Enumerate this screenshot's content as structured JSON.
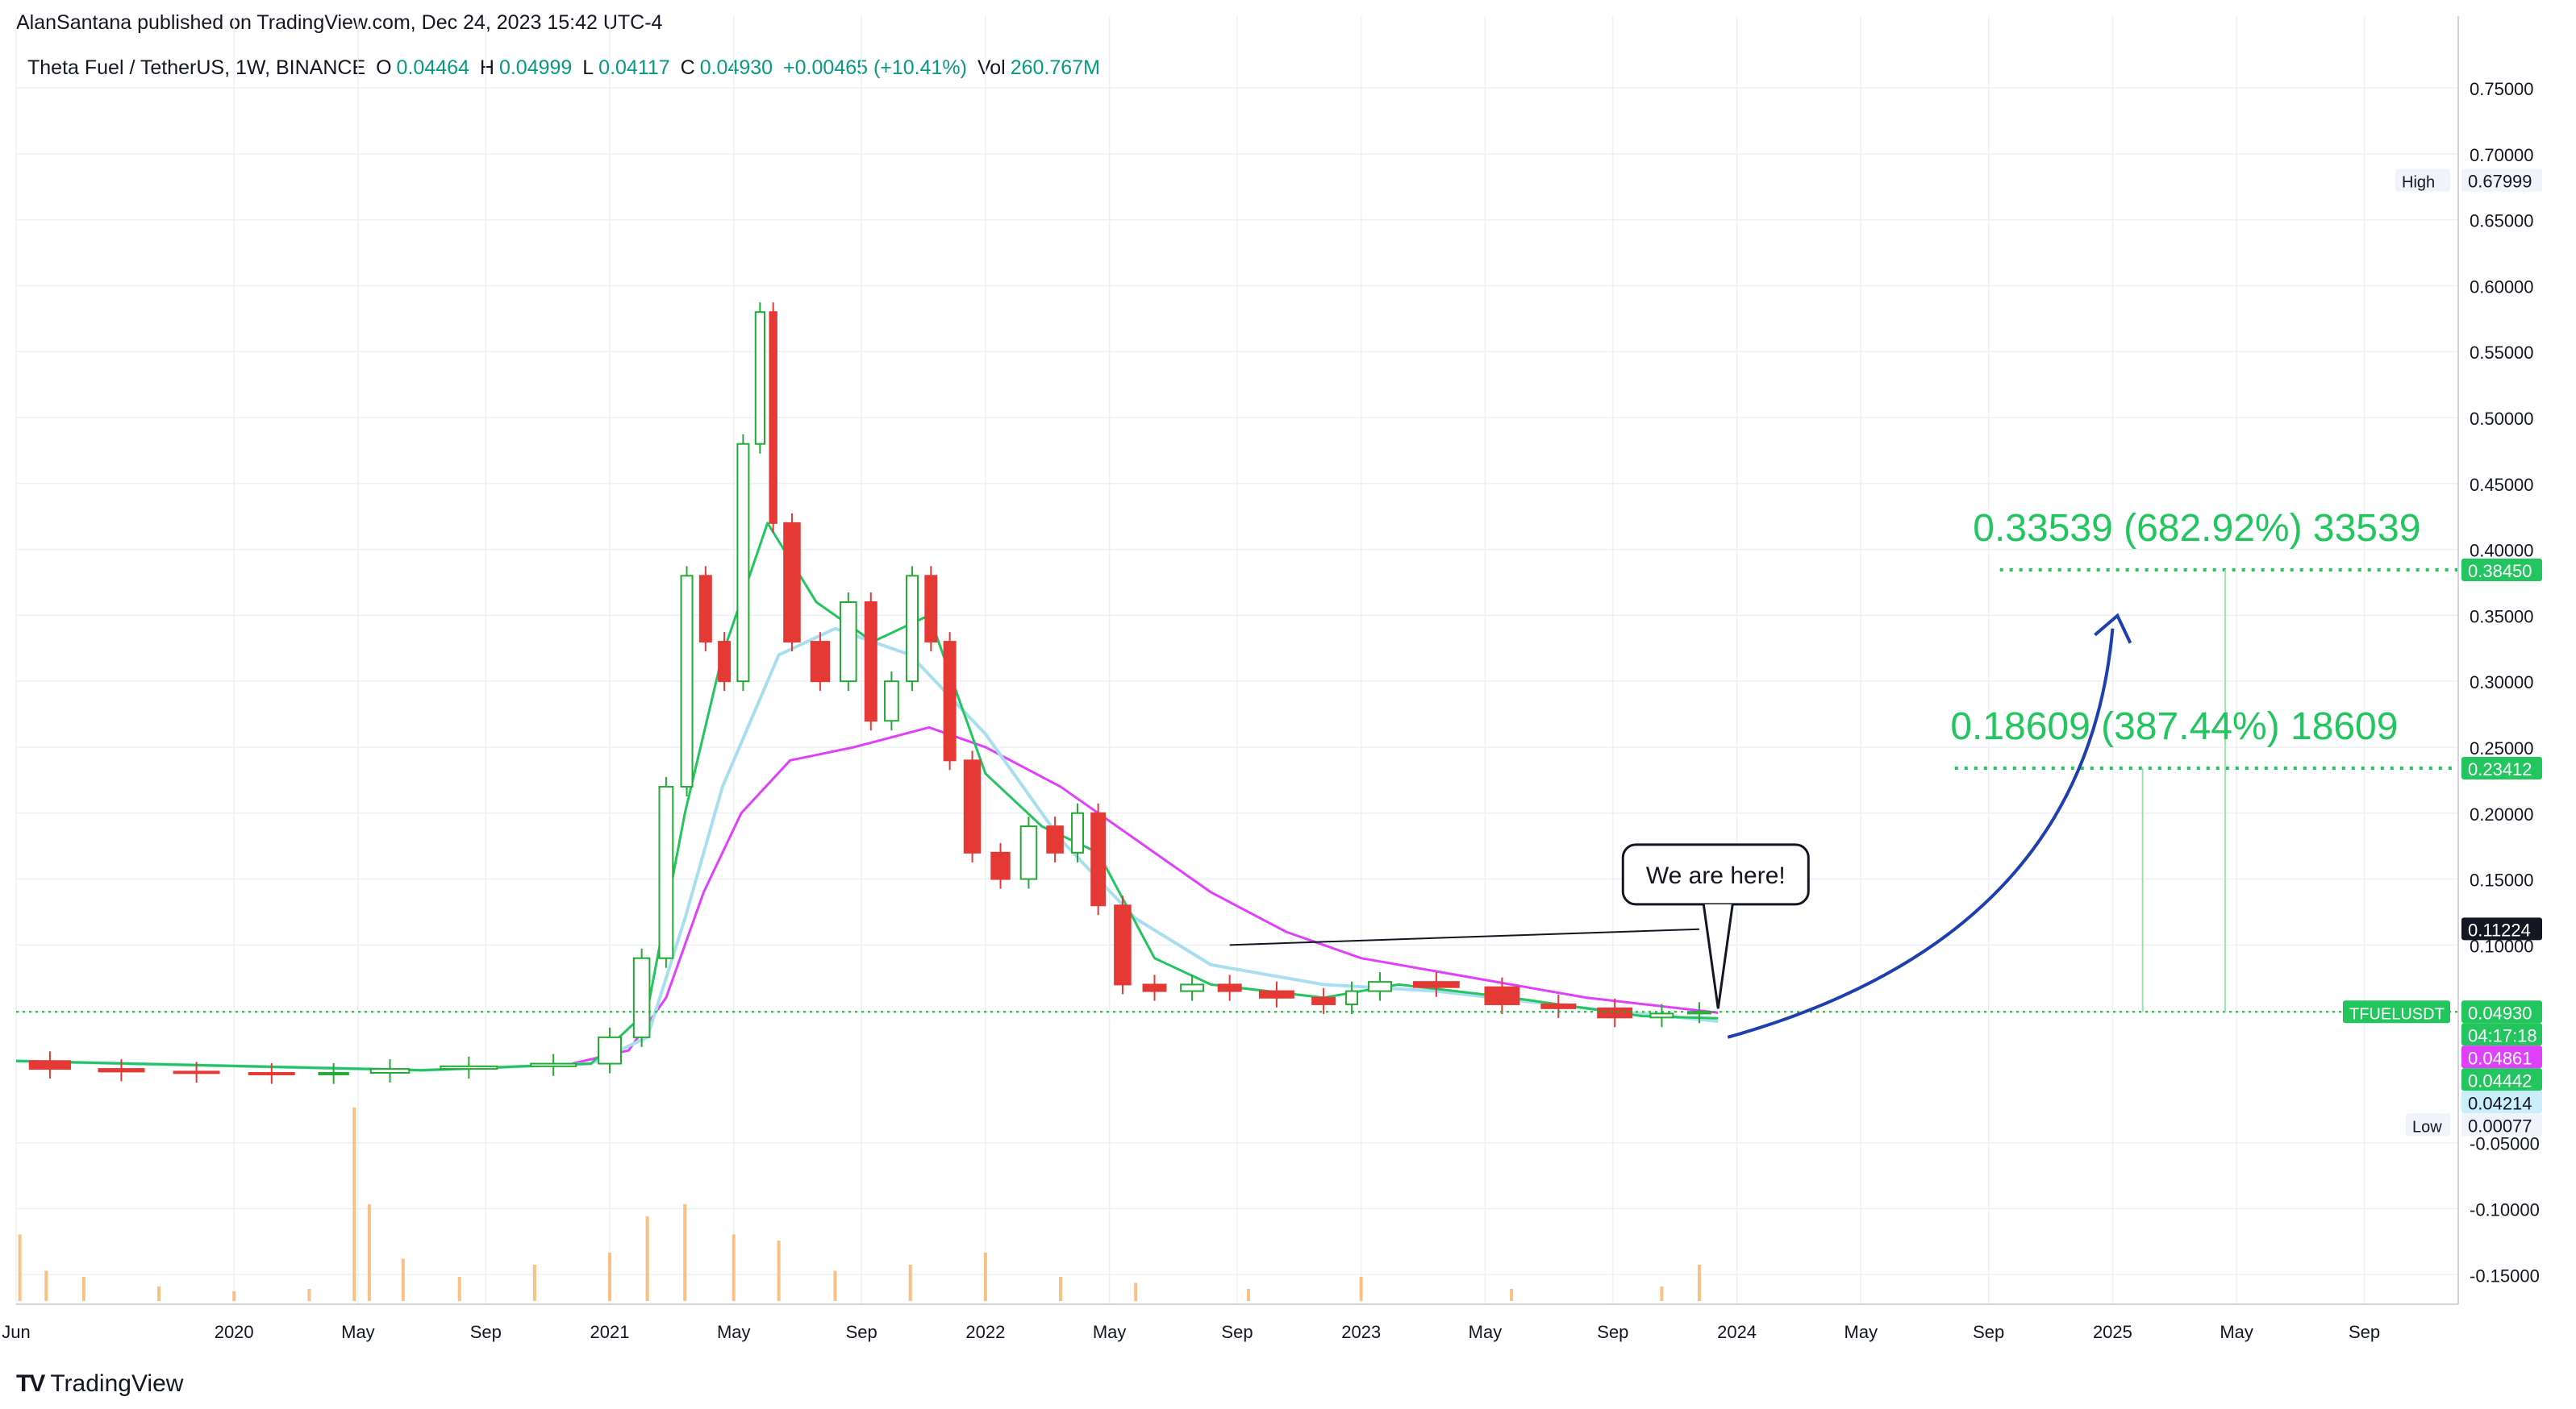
{
  "publish_line": "AlanSantana published on TradingView.com, Dec 24, 2023 15:42 UTC-4",
  "legend": {
    "symbol": "Theta Fuel / TetherUS, 1W, BINANCE",
    "o_label": "O",
    "o": "0.04464",
    "h_label": "H",
    "h": "0.04999",
    "l_label": "L",
    "l": "0.04117",
    "c_label": "C",
    "c": "0.04930",
    "change": "+0.00465 (+10.41%)",
    "vol_label": "Vol",
    "vol": "260.767M"
  },
  "footer": {
    "logo_mark": "TV",
    "logo_text": "TradingView"
  },
  "colors": {
    "up": "#22ab35",
    "down": "#e53935",
    "ema_fast": "#22c55e",
    "ema_mid": "#a8dff0",
    "ema_slow": "#e040fb",
    "target": "#22c55e",
    "arrow": "#1e40af",
    "grid": "#eef0f3"
  },
  "chart_data": {
    "type": "line",
    "title": "Theta Fuel / TetherUS, 1W, BINANCE",
    "xlabel": "",
    "ylabel": "",
    "ylim": [
      -0.17,
      0.78
    ],
    "y_ticks": [
      "0.75000",
      "0.70000",
      "0.65000",
      "0.60000",
      "0.55000",
      "0.50000",
      "0.45000",
      "0.40000",
      "0.35000",
      "0.30000",
      "0.25000",
      "0.20000",
      "0.15000",
      "0.10000",
      "-0.05000",
      "-0.10000",
      "-0.15000"
    ],
    "y_tick_values": [
      0.75,
      0.7,
      0.65,
      0.6,
      0.55,
      0.5,
      0.45,
      0.4,
      0.35,
      0.3,
      0.25,
      0.2,
      0.15,
      0.1,
      -0.05,
      -0.1,
      -0.15
    ],
    "x_ticks": [
      {
        "label": "Jun",
        "t": 2019.42
      },
      {
        "label": "2020",
        "t": 2020.0
      },
      {
        "label": "May",
        "t": 2020.33
      },
      {
        "label": "Sep",
        "t": 2020.67
      },
      {
        "label": "2021",
        "t": 2021.0
      },
      {
        "label": "May",
        "t": 2021.33
      },
      {
        "label": "Sep",
        "t": 2021.67
      },
      {
        "label": "2022",
        "t": 2022.0
      },
      {
        "label": "May",
        "t": 2022.33
      },
      {
        "label": "Sep",
        "t": 2022.67
      },
      {
        "label": "2023",
        "t": 2023.0
      },
      {
        "label": "May",
        "t": 2023.33
      },
      {
        "label": "Sep",
        "t": 2023.67
      },
      {
        "label": "2024",
        "t": 2024.0
      },
      {
        "label": "May",
        "t": 2024.33
      },
      {
        "label": "Sep",
        "t": 2024.67
      },
      {
        "label": "2025",
        "t": 2025.0
      },
      {
        "label": "May",
        "t": 2025.33
      },
      {
        "label": "Sep",
        "t": 2025.67
      }
    ],
    "x_range": [
      2019.42,
      2025.92
    ],
    "price_series": [
      {
        "t": 2019.42,
        "v": 0.012
      },
      {
        "t": 2019.6,
        "v": 0.006
      },
      {
        "t": 2019.8,
        "v": 0.004
      },
      {
        "t": 2020.0,
        "v": 0.003
      },
      {
        "t": 2020.2,
        "v": 0.002
      },
      {
        "t": 2020.33,
        "v": 0.003
      },
      {
        "t": 2020.5,
        "v": 0.006
      },
      {
        "t": 2020.75,
        "v": 0.008
      },
      {
        "t": 2020.95,
        "v": 0.01
      },
      {
        "t": 2021.05,
        "v": 0.03
      },
      {
        "t": 2021.12,
        "v": 0.09
      },
      {
        "t": 2021.18,
        "v": 0.22
      },
      {
        "t": 2021.23,
        "v": 0.38
      },
      {
        "t": 2021.28,
        "v": 0.33
      },
      {
        "t": 2021.33,
        "v": 0.3
      },
      {
        "t": 2021.38,
        "v": 0.48
      },
      {
        "t": 2021.42,
        "v": 0.58
      },
      {
        "t": 2021.45,
        "v": 0.42
      },
      {
        "t": 2021.52,
        "v": 0.33
      },
      {
        "t": 2021.6,
        "v": 0.3
      },
      {
        "t": 2021.67,
        "v": 0.36
      },
      {
        "t": 2021.72,
        "v": 0.27
      },
      {
        "t": 2021.78,
        "v": 0.3
      },
      {
        "t": 2021.83,
        "v": 0.38
      },
      {
        "t": 2021.88,
        "v": 0.33
      },
      {
        "t": 2021.93,
        "v": 0.24
      },
      {
        "t": 2022.0,
        "v": 0.17
      },
      {
        "t": 2022.08,
        "v": 0.15
      },
      {
        "t": 2022.15,
        "v": 0.19
      },
      {
        "t": 2022.22,
        "v": 0.17
      },
      {
        "t": 2022.27,
        "v": 0.2
      },
      {
        "t": 2022.33,
        "v": 0.13
      },
      {
        "t": 2022.4,
        "v": 0.07
      },
      {
        "t": 2022.5,
        "v": 0.065
      },
      {
        "t": 2022.6,
        "v": 0.07
      },
      {
        "t": 2022.7,
        "v": 0.065
      },
      {
        "t": 2022.85,
        "v": 0.06
      },
      {
        "t": 2022.95,
        "v": 0.055
      },
      {
        "t": 2023.0,
        "v": 0.065
      },
      {
        "t": 2023.1,
        "v": 0.072
      },
      {
        "t": 2023.3,
        "v": 0.068
      },
      {
        "t": 2023.45,
        "v": 0.055
      },
      {
        "t": 2023.6,
        "v": 0.052
      },
      {
        "t": 2023.75,
        "v": 0.045
      },
      {
        "t": 2023.85,
        "v": 0.048
      },
      {
        "t": 2023.95,
        "v": 0.0493
      }
    ],
    "ema_fast_series": [
      {
        "t": 2019.42,
        "v": 0.012
      },
      {
        "t": 2020.5,
        "v": 0.005
      },
      {
        "t": 2020.95,
        "v": 0.01
      },
      {
        "t": 2021.1,
        "v": 0.05
      },
      {
        "t": 2021.2,
        "v": 0.2
      },
      {
        "t": 2021.3,
        "v": 0.32
      },
      {
        "t": 2021.42,
        "v": 0.42
      },
      {
        "t": 2021.55,
        "v": 0.36
      },
      {
        "t": 2021.7,
        "v": 0.33
      },
      {
        "t": 2021.85,
        "v": 0.35
      },
      {
        "t": 2022.0,
        "v": 0.23
      },
      {
        "t": 2022.15,
        "v": 0.19
      },
      {
        "t": 2022.3,
        "v": 0.17
      },
      {
        "t": 2022.45,
        "v": 0.09
      },
      {
        "t": 2022.6,
        "v": 0.07
      },
      {
        "t": 2022.9,
        "v": 0.06
      },
      {
        "t": 2023.1,
        "v": 0.07
      },
      {
        "t": 2023.4,
        "v": 0.06
      },
      {
        "t": 2023.75,
        "v": 0.046
      },
      {
        "t": 2023.95,
        "v": 0.0444
      }
    ],
    "ema_mid_series": [
      {
        "t": 2019.42,
        "v": 0.012
      },
      {
        "t": 2020.5,
        "v": 0.005
      },
      {
        "t": 2020.95,
        "v": 0.01
      },
      {
        "t": 2021.1,
        "v": 0.03
      },
      {
        "t": 2021.2,
        "v": 0.12
      },
      {
        "t": 2021.3,
        "v": 0.22
      },
      {
        "t": 2021.45,
        "v": 0.32
      },
      {
        "t": 2021.6,
        "v": 0.34
      },
      {
        "t": 2021.8,
        "v": 0.32
      },
      {
        "t": 2022.0,
        "v": 0.26
      },
      {
        "t": 2022.2,
        "v": 0.18
      },
      {
        "t": 2022.4,
        "v": 0.12
      },
      {
        "t": 2022.6,
        "v": 0.085
      },
      {
        "t": 2022.9,
        "v": 0.07
      },
      {
        "t": 2023.2,
        "v": 0.065
      },
      {
        "t": 2023.6,
        "v": 0.052
      },
      {
        "t": 2023.95,
        "v": 0.0421
      }
    ],
    "ema_slow_series": [
      {
        "t": 2020.9,
        "v": 0.01
      },
      {
        "t": 2021.05,
        "v": 0.02
      },
      {
        "t": 2021.15,
        "v": 0.06
      },
      {
        "t": 2021.25,
        "v": 0.14
      },
      {
        "t": 2021.35,
        "v": 0.2
      },
      {
        "t": 2021.48,
        "v": 0.24
      },
      {
        "t": 2021.65,
        "v": 0.25
      },
      {
        "t": 2021.85,
        "v": 0.265
      },
      {
        "t": 2022.0,
        "v": 0.25
      },
      {
        "t": 2022.2,
        "v": 0.22
      },
      {
        "t": 2022.4,
        "v": 0.18
      },
      {
        "t": 2022.6,
        "v": 0.14
      },
      {
        "t": 2022.8,
        "v": 0.11
      },
      {
        "t": 2023.0,
        "v": 0.09
      },
      {
        "t": 2023.3,
        "v": 0.075
      },
      {
        "t": 2023.6,
        "v": 0.06
      },
      {
        "t": 2023.95,
        "v": 0.0486
      }
    ],
    "volume_bars": [
      {
        "t": 2019.43,
        "v": 0.55
      },
      {
        "t": 2019.5,
        "v": 0.25
      },
      {
        "t": 2019.6,
        "v": 0.2
      },
      {
        "t": 2019.8,
        "v": 0.12
      },
      {
        "t": 2020.0,
        "v": 0.08
      },
      {
        "t": 2020.2,
        "v": 0.1
      },
      {
        "t": 2020.32,
        "v": 1.6
      },
      {
        "t": 2020.36,
        "v": 0.8
      },
      {
        "t": 2020.45,
        "v": 0.35
      },
      {
        "t": 2020.6,
        "v": 0.2
      },
      {
        "t": 2020.8,
        "v": 0.3
      },
      {
        "t": 2021.0,
        "v": 0.4
      },
      {
        "t": 2021.1,
        "v": 0.7
      },
      {
        "t": 2021.2,
        "v": 0.8
      },
      {
        "t": 2021.33,
        "v": 0.55
      },
      {
        "t": 2021.45,
        "v": 0.5
      },
      {
        "t": 2021.6,
        "v": 0.25
      },
      {
        "t": 2021.8,
        "v": 0.3
      },
      {
        "t": 2022.0,
        "v": 0.4
      },
      {
        "t": 2022.2,
        "v": 0.2
      },
      {
        "t": 2022.4,
        "v": 0.15
      },
      {
        "t": 2022.7,
        "v": 0.1
      },
      {
        "t": 2023.0,
        "v": 0.2
      },
      {
        "t": 2023.4,
        "v": 0.1
      },
      {
        "t": 2023.8,
        "v": 0.12
      },
      {
        "t": 2023.9,
        "v": 0.3
      }
    ],
    "price_labels": [
      {
        "value": 0.67999,
        "text": "0.67999",
        "tag": "High",
        "style": "high"
      },
      {
        "value": 0.3845,
        "text": "0.38450",
        "style": "green"
      },
      {
        "value": 0.23412,
        "text": "0.23412",
        "style": "green"
      },
      {
        "value": 0.11224,
        "text": "0.11224",
        "style": "black"
      },
      {
        "value": 0.0493,
        "text": "0.04930",
        "sub": "04:17:18",
        "tag": "TFUELUSDT",
        "style": "green"
      },
      {
        "value": 0.04861,
        "text": "0.04861",
        "style": "magenta"
      },
      {
        "value": 0.04442,
        "text": "0.04442",
        "style": "green"
      },
      {
        "value": 0.04214,
        "text": "0.04214",
        "style": "lightblue"
      },
      {
        "value": 0.00077,
        "text": "0.00077",
        "tag": "Low",
        "style": "low"
      }
    ],
    "targets": [
      {
        "value": 0.3845,
        "label": "0.33539 (682.92%) 33539",
        "t_start": 2024.7,
        "t_end": 2025.92
      },
      {
        "value": 0.23412,
        "label": "0.18609 (387.44%) 18609",
        "t_start": 2024.58,
        "t_end": 2025.92
      }
    ],
    "annotation": {
      "text": "We are here!"
    }
  }
}
